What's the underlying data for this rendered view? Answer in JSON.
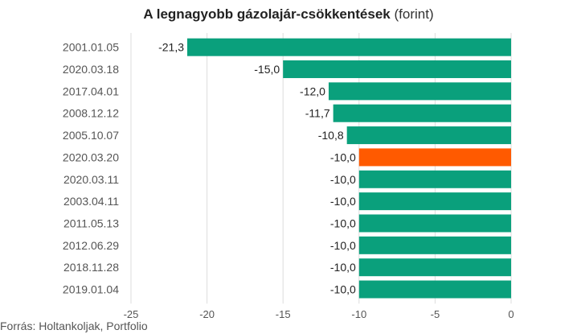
{
  "title": {
    "bold": "A legnagyobb gázolajár-csökkentések",
    "normal": "(forint)"
  },
  "source": "Forrás: Holtankoljak, Portfolio",
  "colors": {
    "default": "#0aa07c",
    "highlight": "#ff5a00"
  },
  "chart_data": {
    "type": "bar",
    "orientation": "horizontal",
    "categories": [
      "2001.01.05",
      "2020.03.18",
      "2017.04.01",
      "2008.12.12",
      "2005.10.07",
      "2020.03.20",
      "2020.03.11",
      "2003.04.11",
      "2011.05.13",
      "2012.06.29",
      "2018.11.28",
      "2019.01.04"
    ],
    "values": [
      -21.3,
      -15.0,
      -12.0,
      -11.7,
      -10.8,
      -10.0,
      -10.0,
      -10.0,
      -10.0,
      -10.0,
      -10.0,
      -10.0
    ],
    "value_labels": [
      "-21,3",
      "-15,0",
      "-12,0",
      "-11,7",
      "-10,8",
      "-10,0",
      "-10,0",
      "-10,0",
      "-10,0",
      "-10,0",
      "-10,0",
      "-10,0"
    ],
    "highlight_category": "2020.03.20",
    "xlim": [
      -25,
      0
    ],
    "xticks": [
      -25,
      -20,
      -15,
      -10,
      -5,
      0
    ],
    "grid": true
  }
}
